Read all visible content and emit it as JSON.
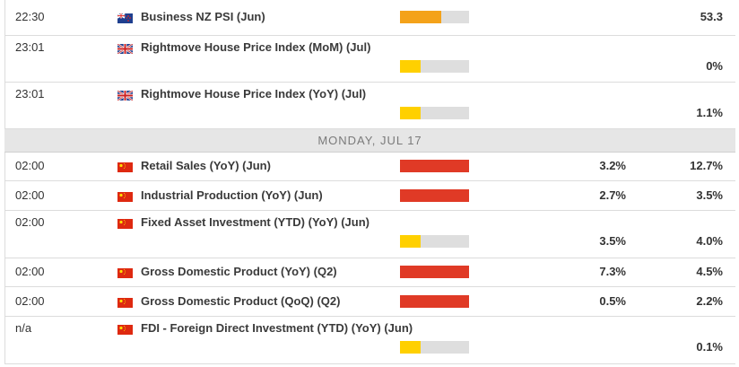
{
  "rows_before": [
    {
      "time": "22:30",
      "event": "Business NZ PSI (Jun)",
      "previous": "53.3"
    },
    {
      "time": "23:01",
      "event": "Rightmove House Price Index (MoM) (Jul)",
      "previous": "0%"
    },
    {
      "time": "23:01",
      "event": "Rightmove House Price Index (YoY) (Jul)",
      "previous": "1.1%"
    }
  ],
  "date_header": "MONDAY, JUL 17",
  "rows_after": [
    {
      "time": "02:00",
      "event": "Retail Sales (YoY) (Jun)",
      "consensus": "3.2%",
      "previous": "12.7%"
    },
    {
      "time": "02:00",
      "event": "Industrial Production (YoY) (Jun)",
      "consensus": "2.7%",
      "previous": "3.5%"
    },
    {
      "time": "02:00",
      "event": "Fixed Asset Investment (YTD) (YoY) (Jun)",
      "consensus": "3.5%",
      "previous": "4.0%"
    },
    {
      "time": "02:00",
      "event": "Gross Domestic Product (YoY) (Q2)",
      "consensus": "7.3%",
      "previous": "4.5%"
    },
    {
      "time": "02:00",
      "event": "Gross Domestic Product (QoQ) (Q2)",
      "consensus": "0.5%",
      "previous": "2.2%"
    },
    {
      "time": "n/a",
      "event": "FDI - Foreign Direct Investment (YTD) (YoY) (Jun)",
      "previous": "0.1%"
    }
  ]
}
